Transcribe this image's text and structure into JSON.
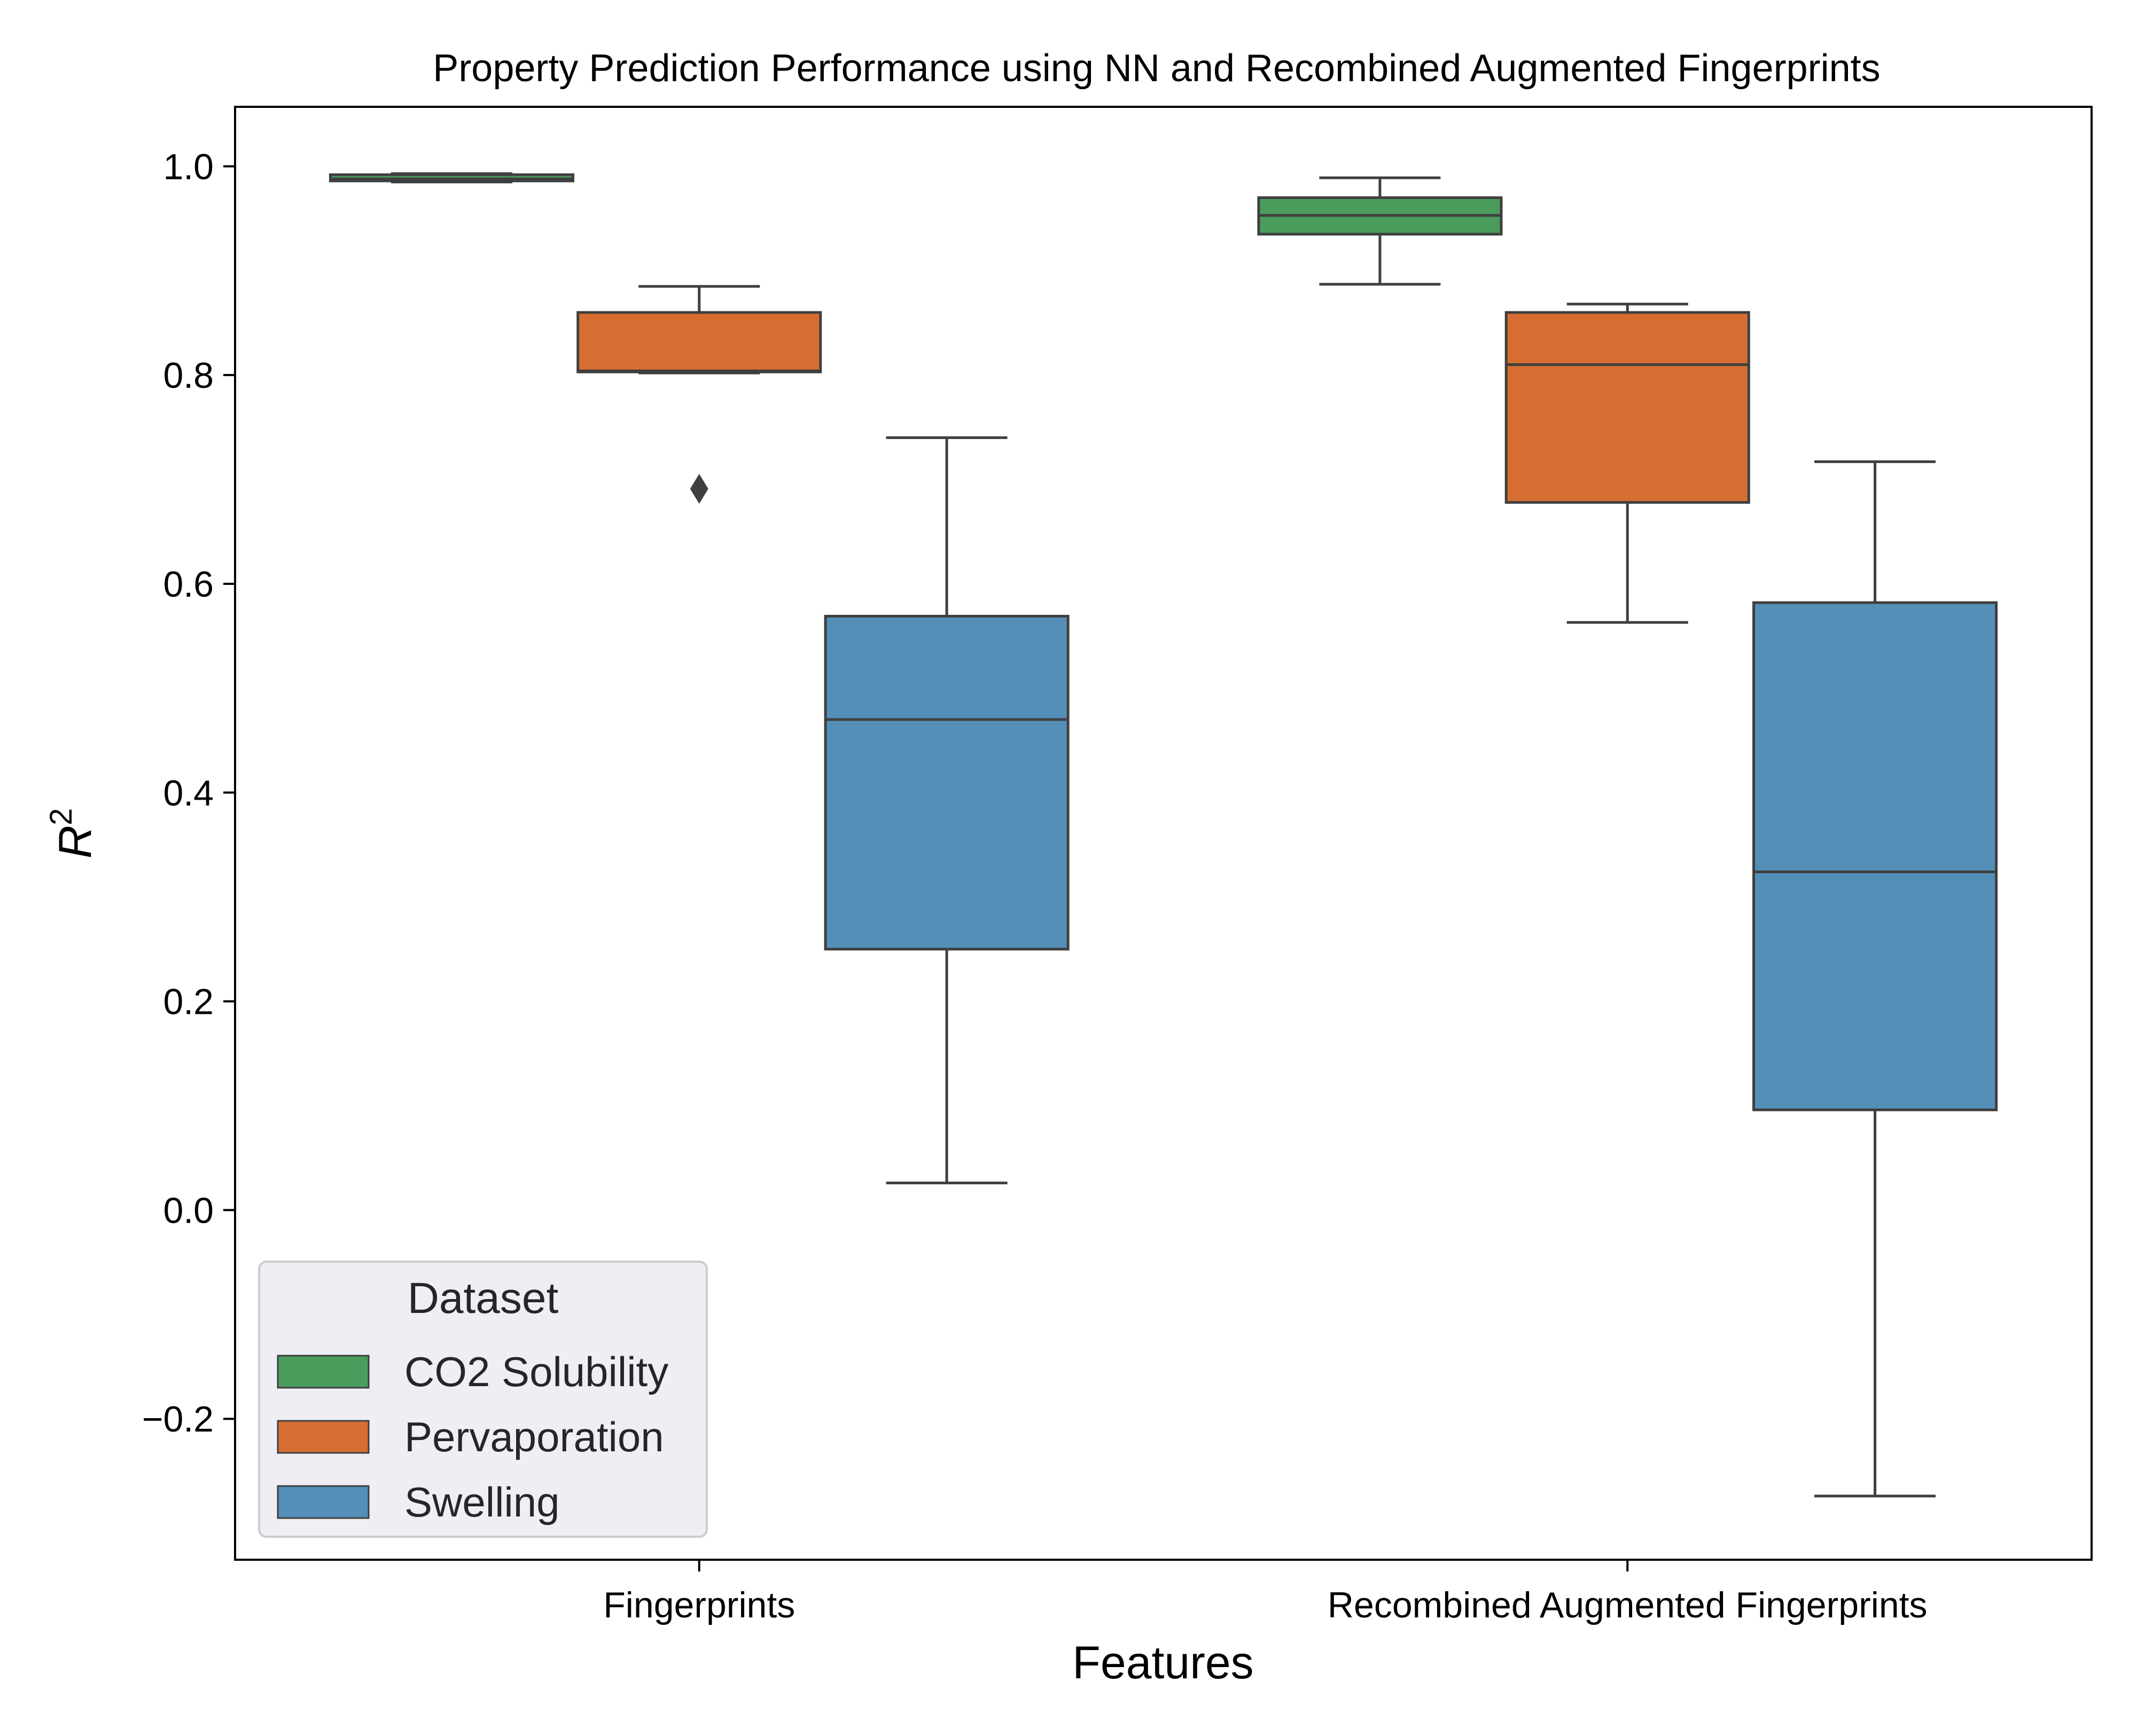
{
  "chart_data": {
    "type": "box",
    "title": "Property Prediction Performance using NN and Recombined Augmented Fingerprints",
    "xlabel": "Features",
    "ylabel": "R",
    "ylabel_superscript": "2",
    "categories": [
      "Fingerprints",
      "Recombined Augmented Fingerprints"
    ],
    "ylim": [
      -0.335,
      1.057
    ],
    "yticks": [
      -0.2,
      0.0,
      0.2,
      0.4,
      0.6,
      0.8,
      1.0
    ],
    "ytick_labels": [
      "−0.2",
      "0.0",
      "0.2",
      "0.4",
      "0.6",
      "0.8",
      "1.0"
    ],
    "grid": false,
    "legend": {
      "title": "Dataset",
      "position": "lower-left",
      "entries": [
        "CO2 Solubility",
        "Pervaporation",
        "Swelling"
      ]
    },
    "series": [
      {
        "name": "CO2 Solubility",
        "color": "#4a9c5d",
        "boxes": [
          {
            "whislo": 0.985,
            "q1": 0.986,
            "med": 0.988,
            "q3": 0.992,
            "whishi": 0.993,
            "fliers": []
          },
          {
            "whislo": 0.887,
            "q1": 0.935,
            "med": 0.953,
            "q3": 0.97,
            "whishi": 0.989,
            "fliers": []
          }
        ]
      },
      {
        "name": "Pervaporation",
        "color": "#d66e31",
        "boxes": [
          {
            "whislo": 0.802,
            "q1": 0.803,
            "med": 0.804,
            "q3": 0.86,
            "whishi": 0.885,
            "fliers": [
              0.691
            ]
          },
          {
            "whislo": 0.563,
            "q1": 0.678,
            "med": 0.81,
            "q3": 0.86,
            "whishi": 0.868,
            "fliers": []
          }
        ]
      },
      {
        "name": "Swelling",
        "color": "#548fb8",
        "boxes": [
          {
            "whislo": 0.026,
            "q1": 0.25,
            "med": 0.47,
            "q3": 0.569,
            "whishi": 0.74,
            "fliers": []
          },
          {
            "whislo": -0.274,
            "q1": 0.096,
            "med": 0.324,
            "q3": 0.582,
            "whishi": 0.717,
            "fliers": []
          }
        ]
      }
    ]
  }
}
